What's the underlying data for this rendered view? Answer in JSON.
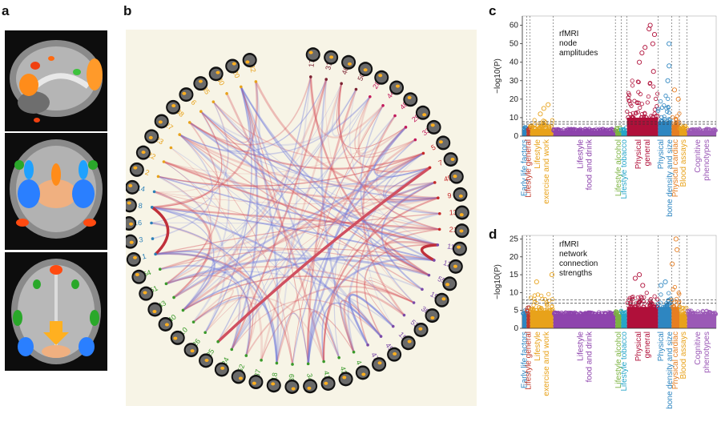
{
  "panel_letters": {
    "a": "a",
    "b": "b",
    "c": "c",
    "d": "d"
  },
  "panel_b": {
    "node_labels": [
      {
        "label": "17",
        "color": "#7b2232"
      },
      {
        "label": "31",
        "color": "#7b2232"
      },
      {
        "label": "46",
        "color": "#7b2232"
      },
      {
        "label": "50",
        "color": "#7b2232"
      },
      {
        "label": "28",
        "color": "#c2185b"
      },
      {
        "label": "44",
        "color": "#c2185b"
      },
      {
        "label": "48",
        "color": "#c2185b"
      },
      {
        "label": "29",
        "color": "#c2185b"
      },
      {
        "label": "33",
        "color": "#c2185b"
      },
      {
        "label": "5",
        "color": "#c62828"
      },
      {
        "label": "7",
        "color": "#c62828"
      },
      {
        "label": "49",
        "color": "#c62828"
      },
      {
        "label": "9",
        "color": "#c62828"
      },
      {
        "label": "13",
        "color": "#c62828"
      },
      {
        "label": "21",
        "color": "#c62828"
      },
      {
        "label": "11",
        "color": "#7b4aa8"
      },
      {
        "label": "12",
        "color": "#7b4aa8"
      },
      {
        "label": "55",
        "color": "#7b4aa8"
      },
      {
        "label": "19",
        "color": "#7b4aa8"
      },
      {
        "label": "36",
        "color": "#7b4aa8"
      },
      {
        "label": "53",
        "color": "#7b4aa8"
      },
      {
        "label": "15",
        "color": "#7b4aa8"
      },
      {
        "label": "45",
        "color": "#7b4aa8"
      },
      {
        "label": "47",
        "color": "#7b4aa8"
      },
      {
        "label": "4",
        "color": "#3a9a2a"
      },
      {
        "label": "42",
        "color": "#3a9a2a"
      },
      {
        "label": "41",
        "color": "#3a9a2a"
      },
      {
        "label": "34",
        "color": "#3a9a2a"
      },
      {
        "label": "39",
        "color": "#3a9a2a"
      },
      {
        "label": "18",
        "color": "#3a9a2a"
      },
      {
        "label": "37",
        "color": "#3a9a2a"
      },
      {
        "label": "52",
        "color": "#3a9a2a"
      },
      {
        "label": "24",
        "color": "#3a9a2a"
      },
      {
        "label": "25",
        "color": "#3a9a2a"
      },
      {
        "label": "26",
        "color": "#3a9a2a"
      },
      {
        "label": "10",
        "color": "#3a9a2a"
      },
      {
        "label": "40",
        "color": "#3a9a2a"
      },
      {
        "label": "43",
        "color": "#3a9a2a"
      },
      {
        "label": "51",
        "color": "#3a9a2a"
      },
      {
        "label": "54",
        "color": "#3a9a2a"
      },
      {
        "label": "1",
        "color": "#2a7fb8"
      },
      {
        "label": "3",
        "color": "#2a7fb8"
      },
      {
        "label": "16",
        "color": "#2a7fb8"
      },
      {
        "label": "8",
        "color": "#2a7fb8"
      },
      {
        "label": "14",
        "color": "#2a7fb8"
      },
      {
        "label": "2",
        "color": "#e8a21a"
      },
      {
        "label": "22",
        "color": "#e8a21a"
      },
      {
        "label": "23",
        "color": "#e8a21a"
      },
      {
        "label": "27",
        "color": "#e8a21a"
      },
      {
        "label": "38",
        "color": "#e8a21a"
      },
      {
        "label": "6",
        "color": "#e8a21a"
      },
      {
        "label": "35",
        "color": "#e8a21a"
      },
      {
        "label": "30",
        "color": "#e8a21a"
      },
      {
        "label": "20",
        "color": "#e8a21a"
      },
      {
        "label": "32",
        "color": "#e8a21a"
      }
    ]
  },
  "chart_data": [
    {
      "type": "scatter",
      "panel": "c",
      "annotation": "rfMRI\nnode\namplitudes",
      "ylabel": "−log10(P)",
      "ylim": [
        0,
        65
      ],
      "yticks": [
        0,
        10,
        20,
        30,
        40,
        50,
        60
      ],
      "threshold_lines": [
        6.5,
        7.8
      ],
      "categories": [
        {
          "name": "Early life factors",
          "label_lines": [
            "Early life factors"
          ],
          "color": "#2e86c1",
          "range": [
            0.0,
            0.022
          ],
          "base": 3.5,
          "peak": 5,
          "spikes": []
        },
        {
          "name": "Lifestyle general",
          "label_lines": [
            "Lifestyle general"
          ],
          "color": "#c0392b",
          "range": [
            0.022,
            0.04
          ],
          "base": 3.5,
          "peak": 5,
          "spikes": []
        },
        {
          "name": "Lifestyle exercise and work",
          "label_lines": [
            "Lifestyle",
            "exercise and work"
          ],
          "color": "#e8a21a",
          "range": [
            0.04,
            0.16
          ],
          "base": 4,
          "peak": 9,
          "spikes": [
            12,
            15,
            17
          ]
        },
        {
          "name": "Lifestyle food and drink",
          "label_lines": [
            "Lifestyle",
            "food and drink"
          ],
          "color": "#8e44ad",
          "range": [
            0.16,
            0.48
          ],
          "base": 3,
          "peak": 4,
          "spikes": []
        },
        {
          "name": "Lifestyle alcohol",
          "label_lines": [
            "Lifestyle alcohol"
          ],
          "color": "#7cb342",
          "range": [
            0.48,
            0.51
          ],
          "base": 3,
          "peak": 5,
          "spikes": []
        },
        {
          "name": "Lifestyle tobacco",
          "label_lines": [
            "Lifestyle tobacco"
          ],
          "color": "#26a6c9",
          "range": [
            0.51,
            0.54
          ],
          "base": 3,
          "peak": 5,
          "spikes": []
        },
        {
          "name": "Physical general",
          "label_lines": [
            "Physical",
            "general"
          ],
          "color": "#b0103a",
          "range": [
            0.54,
            0.7
          ],
          "base": 10,
          "peak": 30,
          "spikes": [
            35,
            40,
            45,
            48,
            50,
            55,
            58,
            60
          ]
        },
        {
          "name": "Physical bone density and size",
          "label_lines": [
            "Physical",
            "bone density and size"
          ],
          "color": "#2e86c1",
          "range": [
            0.7,
            0.77
          ],
          "base": 8,
          "peak": 22,
          "spikes": [
            30,
            38,
            50
          ]
        },
        {
          "name": "Physical cardiac",
          "label_lines": [
            "Physical cardiac"
          ],
          "color": "#e67e22",
          "range": [
            0.77,
            0.81
          ],
          "base": 6,
          "peak": 14,
          "spikes": [
            20,
            25
          ]
        },
        {
          "name": "Blood assays",
          "label_lines": [
            "Blood assays"
          ],
          "color": "#e8a21a",
          "range": [
            0.81,
            0.85
          ],
          "base": 4,
          "peak": 6,
          "spikes": []
        },
        {
          "name": "Cognitive phenotypes",
          "label_lines": [
            "Cognitive",
            "phenotypes"
          ],
          "color": "#9b59b6",
          "range": [
            0.85,
            1.0
          ],
          "base": 3,
          "peak": 4,
          "spikes": []
        }
      ]
    },
    {
      "type": "scatter",
      "panel": "d",
      "annotation": "rfMRI\nnetwork\nconnection\nstrengths",
      "ylabel": "−log10(P)",
      "ylim": [
        0,
        26
      ],
      "yticks": [
        0,
        5,
        10,
        15,
        20,
        25
      ],
      "threshold_lines": [
        7.0,
        8.0
      ],
      "categories": [
        {
          "name": "Early life factors",
          "label_lines": [
            "Early life factors"
          ],
          "color": "#2e86c1",
          "range": [
            0.0,
            0.022
          ],
          "base": 4,
          "peak": 5,
          "spikes": []
        },
        {
          "name": "Lifestyle general",
          "label_lines": [
            "Lifestyle general"
          ],
          "color": "#c0392b",
          "range": [
            0.022,
            0.04
          ],
          "base": 4,
          "peak": 6,
          "spikes": []
        },
        {
          "name": "Lifestyle exercise and work",
          "label_lines": [
            "Lifestyle",
            "exercise and work"
          ],
          "color": "#e8a21a",
          "range": [
            0.04,
            0.16
          ],
          "base": 5,
          "peak": 10,
          "spikes": [
            13,
            15
          ]
        },
        {
          "name": "Lifestyle food and drink",
          "label_lines": [
            "Lifestyle",
            "food and drink"
          ],
          "color": "#8e44ad",
          "range": [
            0.16,
            0.48
          ],
          "base": 4,
          "peak": 4.5,
          "spikes": []
        },
        {
          "name": "Lifestyle alcohol",
          "label_lines": [
            "Lifestyle alcohol"
          ],
          "color": "#7cb342",
          "range": [
            0.48,
            0.51
          ],
          "base": 4,
          "peak": 5,
          "spikes": []
        },
        {
          "name": "Lifestyle tobacco",
          "label_lines": [
            "Lifestyle tobacco"
          ],
          "color": "#26a6c9",
          "range": [
            0.51,
            0.54
          ],
          "base": 4,
          "peak": 5,
          "spikes": []
        },
        {
          "name": "Physical general",
          "label_lines": [
            "Physical",
            "general"
          ],
          "color": "#b0103a",
          "range": [
            0.54,
            0.7
          ],
          "base": 6,
          "peak": 10,
          "spikes": [
            12,
            14,
            15
          ]
        },
        {
          "name": "Physical bone density and size",
          "label_lines": [
            "Physical",
            "bone density and size"
          ],
          "color": "#2e86c1",
          "range": [
            0.7,
            0.77
          ],
          "base": 6,
          "peak": 10,
          "spikes": [
            12,
            13
          ]
        },
        {
          "name": "Physical cardiac",
          "label_lines": [
            "Physical cardiac"
          ],
          "color": "#e67e22",
          "range": [
            0.77,
            0.81
          ],
          "base": 6,
          "peak": 14,
          "spikes": [
            18,
            22,
            25
          ]
        },
        {
          "name": "Blood assays",
          "label_lines": [
            "Blood assays"
          ],
          "color": "#e8a21a",
          "range": [
            0.81,
            0.85
          ],
          "base": 4,
          "peak": 6,
          "spikes": []
        },
        {
          "name": "Cognitive phenotypes",
          "label_lines": [
            "Cognitive",
            "phenotypes"
          ],
          "color": "#9b59b6",
          "range": [
            0.85,
            1.0
          ],
          "base": 4,
          "peak": 5,
          "spikes": []
        }
      ]
    }
  ]
}
